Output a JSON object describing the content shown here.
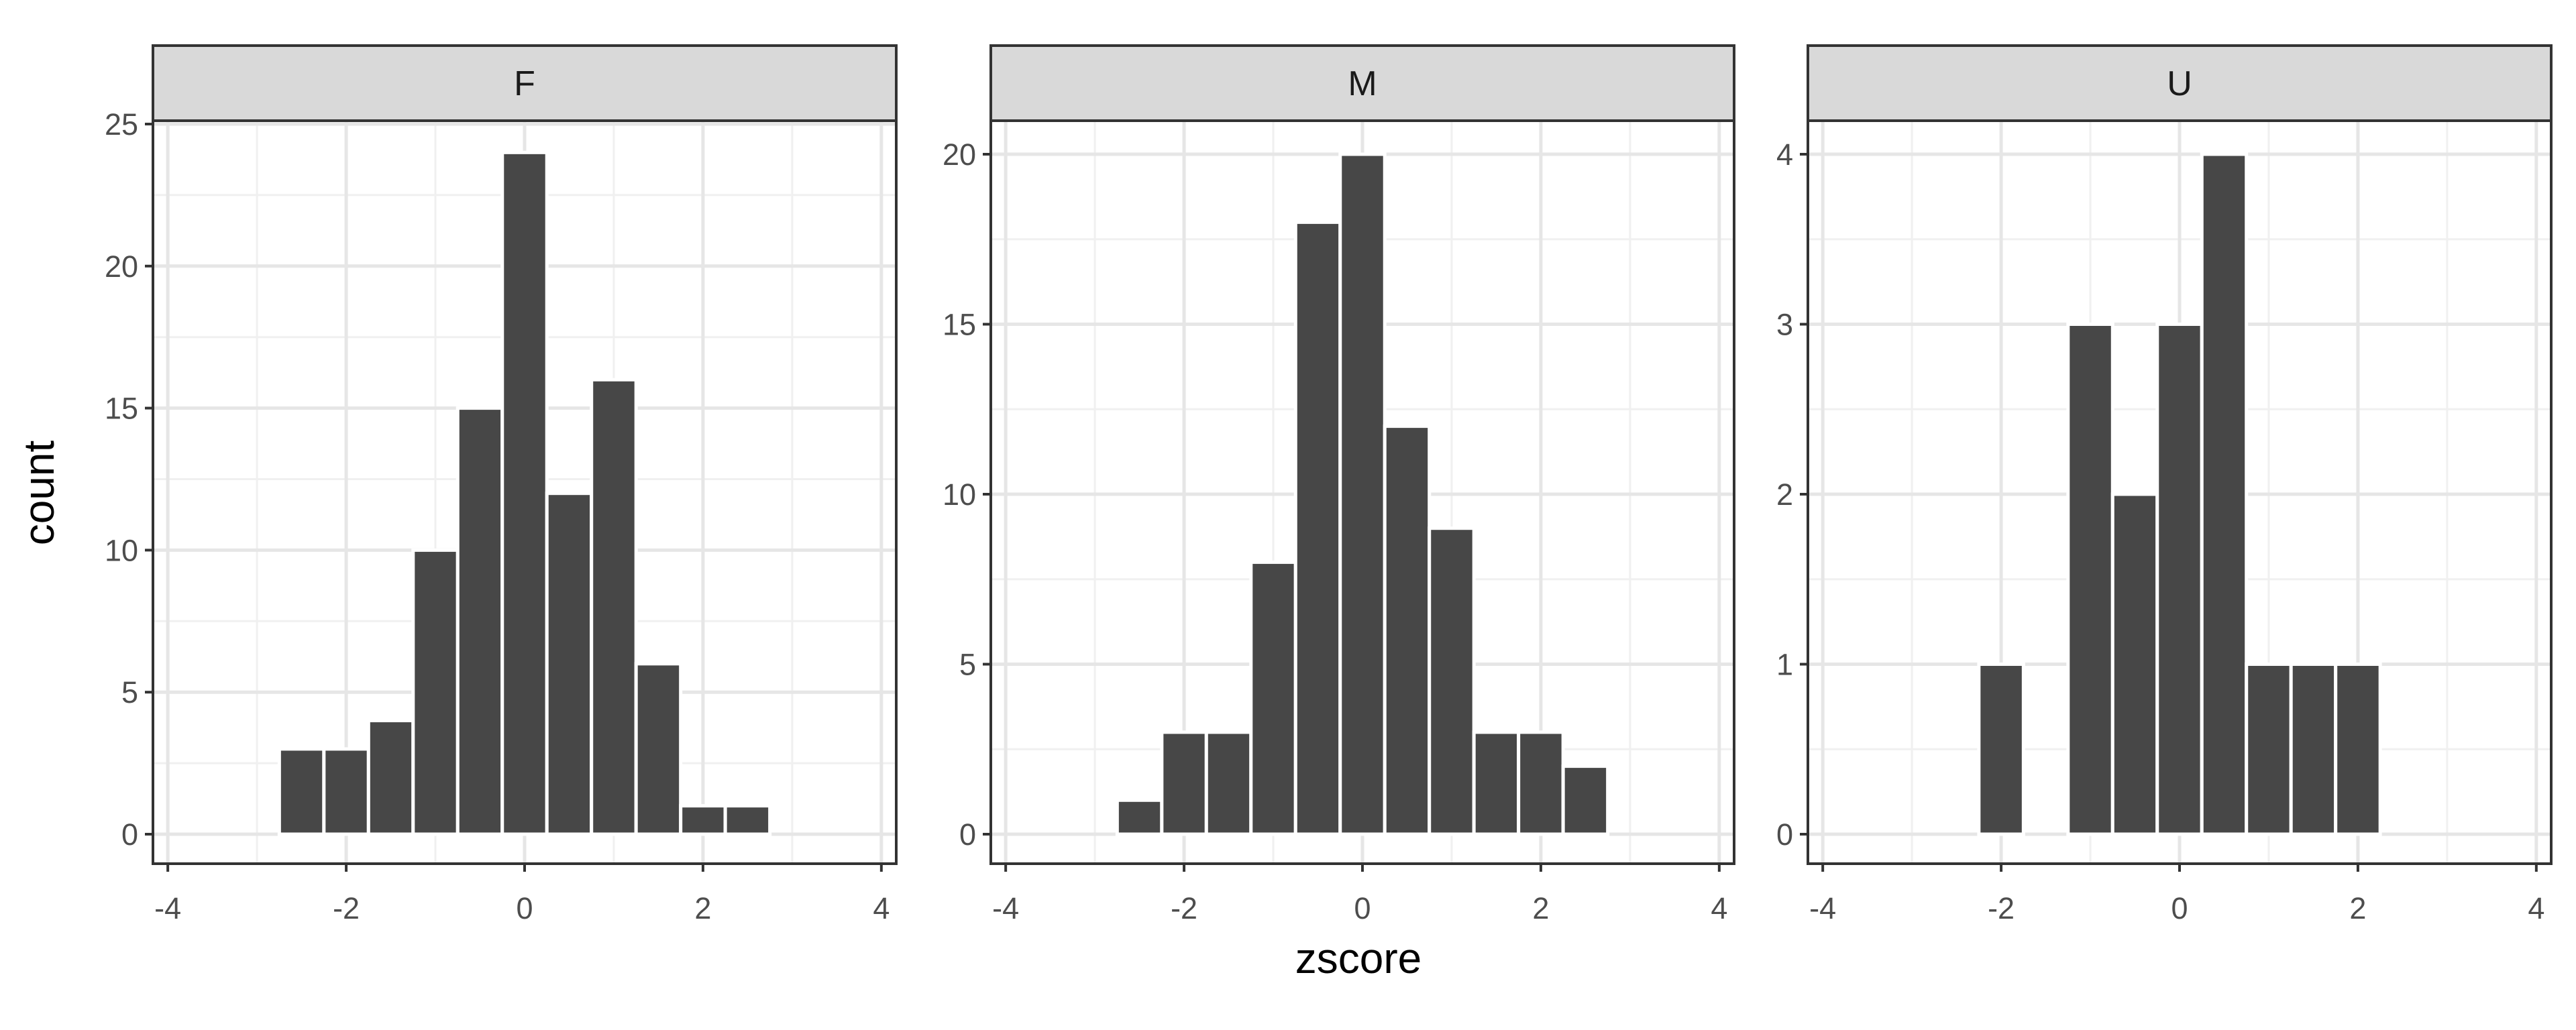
{
  "chart_data": {
    "type": "bar",
    "subtype": "faceted-histogram",
    "xlabel": "zscore",
    "ylabel": "count",
    "bin_width": 0.5,
    "bar_color": "#474747",
    "strip_fill": "#d9d9d9",
    "grid": true,
    "facets": [
      {
        "label": "F",
        "xlim": [
          -4,
          4
        ],
        "ylim": [
          0,
          25
        ],
        "x_ticks": [
          "-4",
          "-2",
          "0",
          "2",
          "4"
        ],
        "y_ticks": [
          "0",
          "5",
          "10",
          "15",
          "20",
          "25"
        ],
        "bin_centers": [
          -2.5,
          -2.0,
          -1.5,
          -1.0,
          -0.5,
          0.0,
          0.5,
          1.0,
          1.5,
          2.0,
          2.5
        ],
        "counts": [
          3,
          3,
          4,
          10,
          15,
          24,
          12,
          16,
          6,
          1,
          1
        ]
      },
      {
        "label": "M",
        "xlim": [
          -4,
          4
        ],
        "ylim": [
          0,
          20
        ],
        "x_ticks": [
          "-4",
          "-2",
          "0",
          "2",
          "4"
        ],
        "y_ticks": [
          "0",
          "5",
          "10",
          "15",
          "20"
        ],
        "bin_centers": [
          -2.5,
          -2.0,
          -1.5,
          -1.0,
          -0.5,
          0.0,
          0.5,
          1.0,
          1.5,
          2.0,
          2.5
        ],
        "counts": [
          1,
          3,
          3,
          8,
          18,
          20,
          12,
          9,
          3,
          3,
          2
        ]
      },
      {
        "label": "U",
        "xlim": [
          -4,
          4
        ],
        "ylim": [
          0,
          4
        ],
        "x_ticks": [
          "-4",
          "-2",
          "0",
          "2",
          "4"
        ],
        "y_ticks": [
          "0",
          "1",
          "2",
          "3",
          "4"
        ],
        "bin_centers": [
          -2.0,
          -1.0,
          -0.5,
          0.0,
          0.5,
          1.0,
          1.5,
          2.0
        ],
        "counts": [
          1,
          3,
          2,
          3,
          4,
          1,
          1,
          1
        ]
      }
    ]
  }
}
